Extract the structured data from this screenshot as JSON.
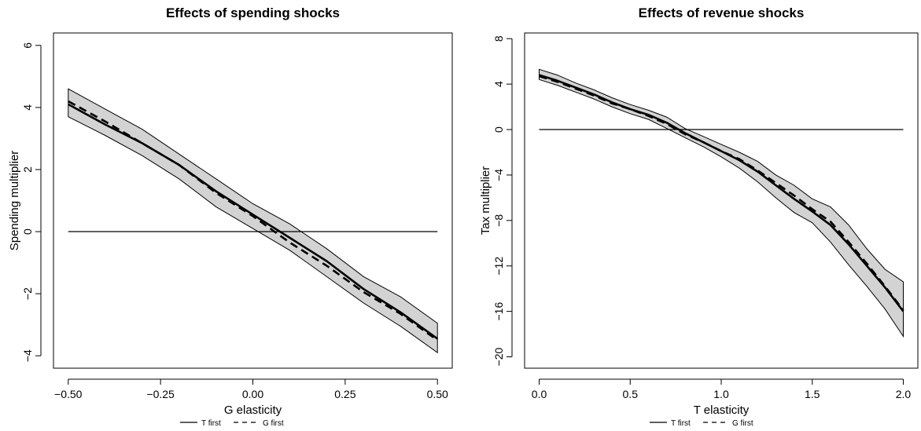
{
  "colors": {
    "band_fill": "#d3d3d3",
    "line": "#000000",
    "background": "#ffffff"
  },
  "chart_data": [
    {
      "type": "line",
      "title": "Effects of spending shocks",
      "xlabel": "G elasticity",
      "ylabel": "Spending multiplier",
      "xlim": [
        -0.5,
        0.5
      ],
      "ylim": [
        -4.4,
        6.4
      ],
      "xticks": [
        -0.5,
        -0.25,
        0.0,
        0.25,
        0.5
      ],
      "xtick_labels": [
        "−0.50",
        "−0.25",
        "0.00",
        "0.25",
        "0.50"
      ],
      "yticks": [
        -4,
        -2,
        0,
        2,
        4,
        6
      ],
      "ytick_labels": [
        "−4",
        "−2",
        "0",
        "2",
        "4",
        "6"
      ],
      "reference_line": 0,
      "x": [
        -0.5,
        -0.4,
        -0.3,
        -0.2,
        -0.1,
        0.0,
        0.1,
        0.2,
        0.3,
        0.4,
        0.5
      ],
      "band": {
        "lower": [
          3.7,
          3.1,
          2.45,
          1.7,
          0.8,
          0.1,
          -0.6,
          -1.45,
          -2.3,
          -3.05,
          -3.9
        ],
        "upper": [
          4.6,
          3.95,
          3.3,
          2.5,
          1.7,
          0.9,
          0.25,
          -0.55,
          -1.45,
          -2.1,
          -2.95
        ]
      },
      "series": [
        {
          "name": "T first",
          "style": "solid",
          "values": [
            4.1,
            3.45,
            2.85,
            2.15,
            1.3,
            0.55,
            -0.2,
            -0.95,
            -1.85,
            -2.6,
            -3.45
          ]
        },
        {
          "name": "G first",
          "style": "dashed",
          "values": [
            4.2,
            3.55,
            2.85,
            2.15,
            1.25,
            0.5,
            -0.35,
            -1.1,
            -1.95,
            -2.65,
            -3.5
          ]
        }
      ],
      "legend": {
        "position": "bottom",
        "entries": [
          "T first",
          "G first"
        ]
      }
    },
    {
      "type": "line",
      "title": "Effects of revenue shocks",
      "xlabel": "T elasticity",
      "ylabel": "Tax multiplier",
      "xlim": [
        0.0,
        2.0
      ],
      "ylim": [
        -21.0,
        8.5
      ],
      "xticks": [
        0.0,
        0.5,
        1.0,
        1.5,
        2.0
      ],
      "xtick_labels": [
        "0.0",
        "0.5",
        "1.0",
        "1.5",
        "2.0"
      ],
      "yticks": [
        -20,
        -16,
        -12,
        -8,
        -4,
        0,
        4,
        8
      ],
      "ytick_labels": [
        "−20",
        "−16",
        "−12",
        "−8",
        "−4",
        "0",
        "4",
        "8"
      ],
      "reference_line": 0,
      "x": [
        0.0,
        0.1,
        0.2,
        0.3,
        0.4,
        0.5,
        0.6,
        0.7,
        0.8,
        0.9,
        1.0,
        1.1,
        1.2,
        1.3,
        1.4,
        1.5,
        1.6,
        1.7,
        1.8,
        1.9,
        2.0
      ],
      "band": {
        "lower": [
          4.4,
          3.9,
          3.3,
          2.7,
          2.0,
          1.4,
          0.9,
          0.1,
          -0.7,
          -1.5,
          -2.4,
          -3.4,
          -4.6,
          -6.0,
          -7.3,
          -8.2,
          -9.9,
          -11.9,
          -13.8,
          -15.8,
          -18.2
        ],
        "upper": [
          5.3,
          4.8,
          4.1,
          3.5,
          2.8,
          2.2,
          1.7,
          1.1,
          0.1,
          -0.6,
          -1.3,
          -2.0,
          -2.8,
          -4.0,
          -4.9,
          -6.1,
          -6.8,
          -8.4,
          -10.5,
          -12.3,
          -13.4
        ]
      },
      "series": [
        {
          "name": "T first",
          "style": "solid",
          "values": [
            4.8,
            4.3,
            3.7,
            3.1,
            2.4,
            1.8,
            1.3,
            0.6,
            -0.3,
            -1.1,
            -1.9,
            -2.7,
            -3.7,
            -4.9,
            -6.1,
            -7.2,
            -8.4,
            -10.1,
            -12.0,
            -13.9,
            -16.0
          ]
        },
        {
          "name": "G first",
          "style": "dashed",
          "values": [
            4.7,
            4.2,
            3.6,
            3.0,
            2.3,
            1.8,
            1.2,
            0.5,
            -0.4,
            -1.1,
            -1.9,
            -2.6,
            -3.6,
            -4.7,
            -5.8,
            -7.0,
            -8.1,
            -9.9,
            -11.8,
            -13.8,
            -15.9
          ]
        }
      ],
      "legend": {
        "position": "bottom",
        "entries": [
          "T first",
          "G first"
        ]
      }
    }
  ]
}
